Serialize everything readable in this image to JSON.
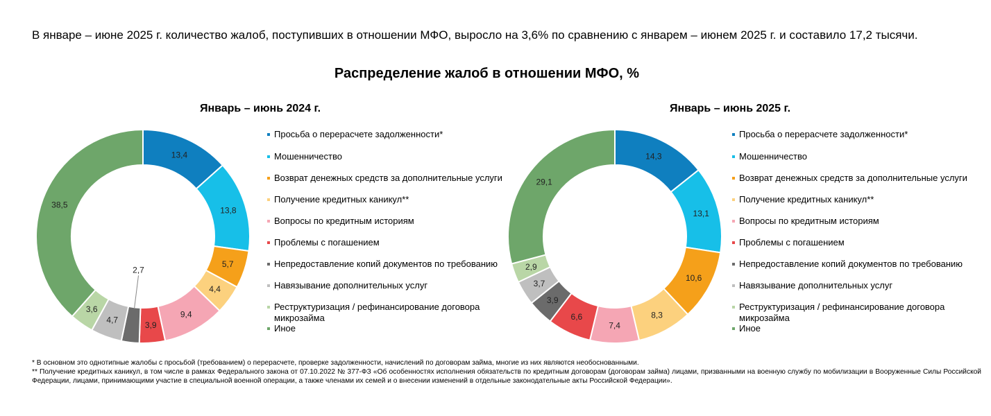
{
  "intro": "В январе – июне 2025 г. количество жалоб, поступивших в отношении МФО, выросло на 3,6% по сравнению с январем – июнем 2025 г. и составило 17,2 тысячи.",
  "title": "Распределение жалоб в отношении МФО, %",
  "legend_colors": [
    "#0f7fbf",
    "#17bfe8",
    "#f5a01a",
    "#fcd17e",
    "#f5a6b4",
    "#e8484a",
    "#6b6b6b",
    "#bfbfbf",
    "#b9d6a6",
    "#6ea66a"
  ],
  "chart_data": [
    {
      "type": "pie",
      "title": "Январь – июнь 2024 г.",
      "categories": [
        "Просьба о перерасчете задолженности*",
        "Мошенничество",
        "Возврат денежных средств за дополнительные услуги",
        "Получение кредитных каникул**",
        "Вопросы по кредитным историям",
        "Проблемы с погашением",
        "Непредоставление копий документов по требованию",
        "Навязывание дополнительных услуг",
        "Реструктуризация / рефинансирование договора микрозайма",
        "Иное"
      ],
      "values": [
        13.4,
        13.8,
        5.7,
        4.4,
        9.4,
        3.9,
        2.7,
        4.7,
        3.6,
        38.5
      ],
      "value_labels": [
        "13,4",
        "13,8",
        "5,7",
        "4,4",
        "9,4",
        "3,9",
        "2,7",
        "4,7",
        "3,6",
        "38,5"
      ],
      "colors": [
        "#0f7fbf",
        "#17bfe8",
        "#f5a01a",
        "#fcd17e",
        "#f5a6b4",
        "#e8484a",
        "#6b6b6b",
        "#bfbfbf",
        "#b9d6a6",
        "#6ea66a"
      ],
      "legend_placement": "right"
    },
    {
      "type": "pie",
      "title": "Январь – июнь 2025 г.",
      "categories": [
        "Просьба о перерасчете задолженности*",
        "Мошенничество",
        "Возврат денежных средств за дополнительные услуги",
        "Получение кредитных каникул**",
        "Вопросы по кредитным историям",
        "Проблемы с погашением",
        "Непредоставление копий документов по требованию",
        "Навязывание дополнительных услуг",
        "Реструктуризация / рефинансирование договора микрозайма",
        "Иное"
      ],
      "values": [
        14.3,
        13.1,
        10.6,
        8.3,
        7.4,
        6.6,
        3.9,
        3.7,
        2.9,
        29.1
      ],
      "value_labels": [
        "14,3",
        "13,1",
        "10,6",
        "8,3",
        "7,4",
        "6,6",
        "3,9",
        "3,7",
        "2,9",
        "29,1"
      ],
      "colors": [
        "#0f7fbf",
        "#17bfe8",
        "#f5a01a",
        "#fcd17e",
        "#f5a6b4",
        "#e8484a",
        "#6b6b6b",
        "#bfbfbf",
        "#b9d6a6",
        "#6ea66a"
      ],
      "legend_placement": "right"
    }
  ],
  "footnotes": [
    "* В основном это однотипные жалобы с просьбой (требованием) о перерасчете, проверке задолженности, начислений по договорам займа, многие из них являются необоснованными.",
    "** Получение кредитных каникул, в том числе в рамках Федерального закона от 07.10.2022 № 377-ФЗ «Об особенностях исполнения обязательств по кредитным договорам (договорам займа) лицами, призванными на военную службу по мобилизации в Вооруженные Силы Российской Федерации, лицами, принимающими участие в специальной военной операции, а также членами их семей и о внесении изменений в отдельные законодательные акты Российской Федерации»."
  ]
}
